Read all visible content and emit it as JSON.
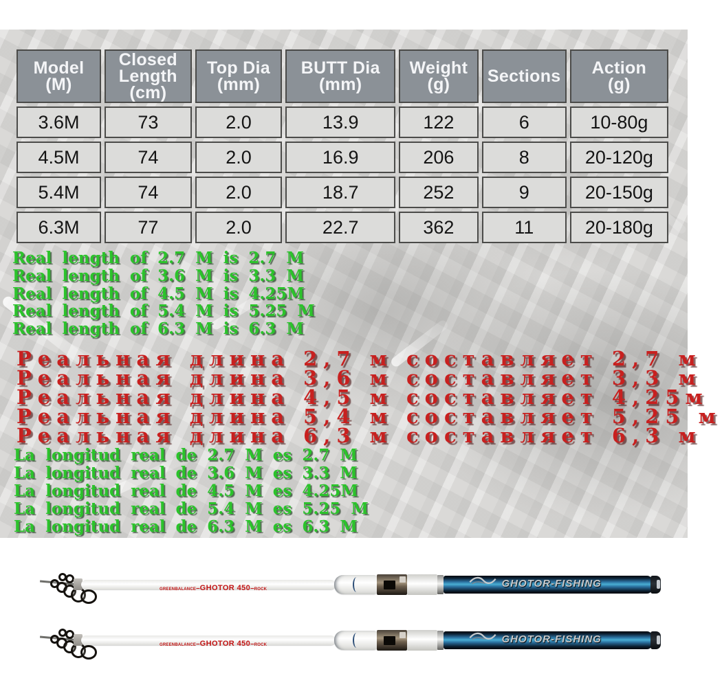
{
  "spec_table": {
    "columns": [
      "Model\n(M)",
      "Closed\nLength\n(cm)",
      "Top Dia\n(mm)",
      "BUTT Dia\n(mm)",
      "Weight\n(g)",
      "Sections",
      "Action\n(g)"
    ],
    "rows": [
      [
        "3.6M",
        "73",
        "2.0",
        "13.9",
        "122",
        "6",
        "10-80g"
      ],
      [
        "4.5M",
        "74",
        "2.0",
        "16.9",
        "206",
        "8",
        "20-120g"
      ],
      [
        "5.4M",
        "74",
        "2.0",
        "18.7",
        "252",
        "9",
        "20-150g"
      ],
      [
        "6.3M",
        "77",
        "2.0",
        "22.7",
        "362",
        "11",
        "20-180g"
      ]
    ]
  },
  "real_length_en": {
    "lines": [
      "Real length of 2.7 M is 2.7 M",
      "Real length of 3.6 M is 3.3 M",
      "Real length of 4.5 M is 4.25M",
      "Real length of 5.4 M is 5.25 M",
      "Real length of 6.3 M is 6.3  M"
    ]
  },
  "real_length_ru": {
    "lines": [
      "Реальная длина 2,7 м составляет 2,7 м",
      "Реальная длина 3,6 м составляет 3,3 м",
      "Реальная длина 4,5 м составляет 4,25м",
      "Реальная длина 5,4 м составляет 5,25 м",
      "Реальная длина 6,3 м составляет 6,3  м"
    ]
  },
  "real_length_es": {
    "lines": [
      "La longitud real de 2.7 M es 2.7 M",
      "La longitud real de 3.6 M es 3.3 M",
      "La longitud real de 4.5 M es 4.25M",
      "La longitud real de 5.4 M es 5.25 M",
      "La longitud real de 6.3 M es 6.3  M"
    ]
  },
  "rod": {
    "left_small_text": "GREENBALANCE",
    "separator": "–",
    "model_text": "GHOTOR 450",
    "right_small_text": "ROCK",
    "butt_brand": "GHOTOR-FISHING"
  },
  "colors": {
    "green_text": "#2bc32b",
    "red_text": "#c8201f",
    "table_header_bg": "#8b9197",
    "table_cell_bg": "#dcdcda",
    "table_border": "#4b4b49",
    "rod_blue": "#49aed4",
    "rod_brand_red": "#c21414"
  }
}
